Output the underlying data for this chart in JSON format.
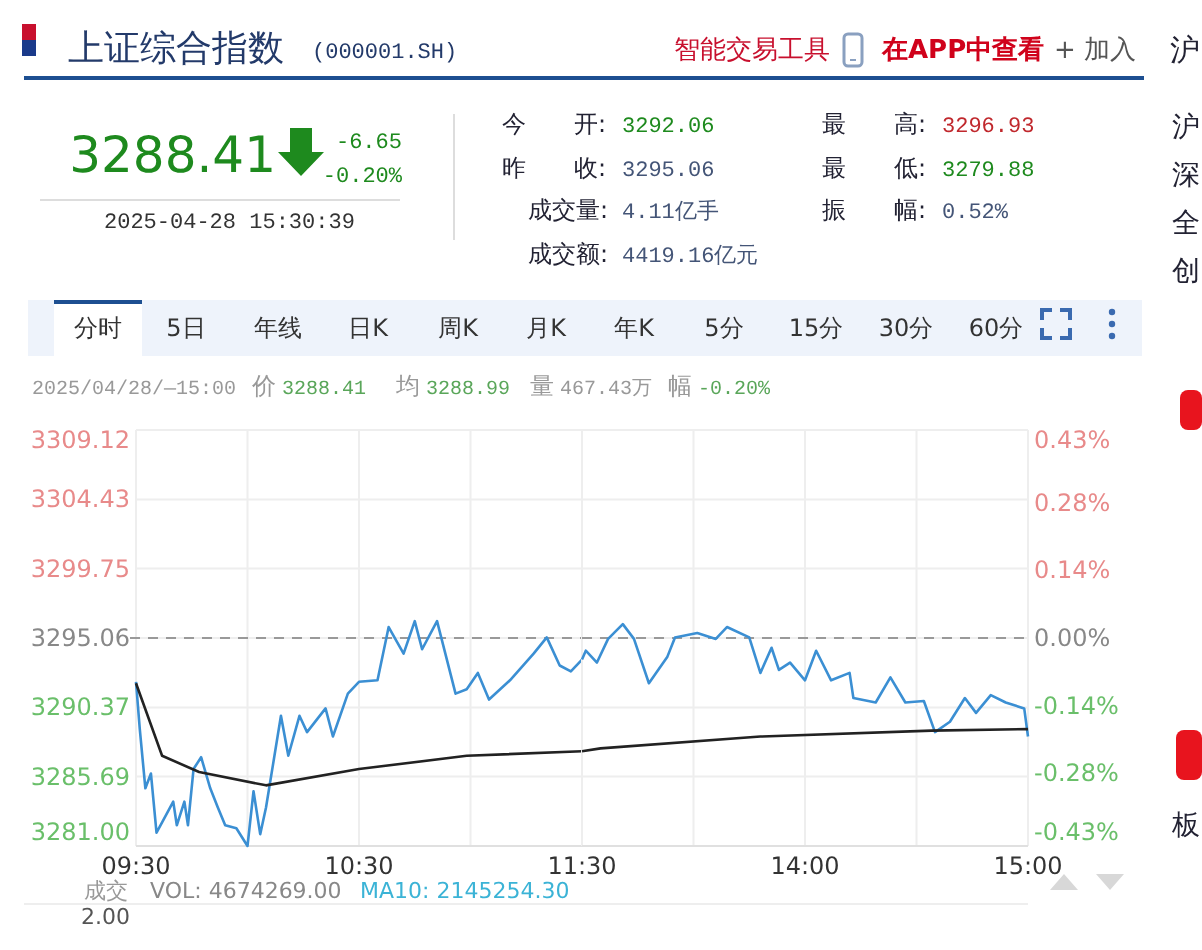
{
  "chart_data": [
    {
      "type": "line",
      "title": "上证综合指数",
      "subtitle": "(000001.SH)",
      "xlim": [
        9.5,
        11.5
      ],
      "xticks": [
        {
          "value": 9.5,
          "label": "09:30"
        },
        {
          "value": 10,
          "label": null
        },
        {
          "value": 10.5,
          "label": "10:30"
        },
        {
          "value": 11,
          "label": null
        },
        {
          "value": 11.5,
          "label": "11:30"
        }
      ],
      "ylim": [
        3281,
        3309.12
      ],
      "yticks": [
        {
          "value": 3281,
          "label": "3281.00"
        },
        3285.69,
        3290.37,
        3295.06,
        3299.75,
        3304.43,
        3309.12
      ],
      "grid": true,
      "marker": "none",
      "ref_lines": [
        {
          "axis": "y",
          "value": 3295.06,
          "color": "#999999",
          "line_style": "dashed"
        }
      ],
      "series": [
        {
          "color": "#3b8fd3",
          "x": [
            9.5,
            9.517,
            9.542,
            9.567,
            9.592,
            9.617,
            9.667,
            9.683,
            9.717,
            9.733,
            9.758,
            9.792,
            9.833,
            9.867,
            9.9,
            9.95,
            10,
            10.027,
            10.057,
            10.083,
            10.15,
            10.183,
            10.233,
            10.267,
            10.35,
            10.383,
            10.45,
            10.5,
            10.583,
            10.633,
            10.7,
            10.75,
            10.783,
            10.85,
            10.933,
            10.983,
            11.033,
            11.083,
            11.177,
            11.283,
            11.342,
            11.4,
            11.45,
            11.5
          ],
          "values": [
            3292.1,
            3288.9,
            3284.9,
            3285.9,
            3281.9,
            3282.6,
            3284.0,
            3282.4,
            3284.0,
            3282.4,
            3286.2,
            3287.0,
            3284.9,
            3283.6,
            3282.4,
            3282.2,
            3281.0,
            3284.7,
            3281.8,
            3283.6,
            3289.8,
            3287.1,
            3289.8,
            3288.7,
            3290.3,
            3288.4,
            3291.3,
            3292.1,
            3292.2,
            3295.8,
            3294.0,
            3296.2,
            3294.3,
            3296.2,
            3291.3,
            3291.6,
            3292.7,
            3290.9,
            3292.2,
            3294.0,
            3295.1,
            3293.2,
            3292.8,
            3293.6
          ]
        },
        {
          "color": "#222222",
          "x": [
            9.5,
            9.617,
            9.783,
            10.083,
            10.5,
            10.983,
            11.5
          ],
          "values": [
            3292.0,
            3287.1,
            3286.0,
            3285.1,
            3286.2,
            3287.1,
            3287.4
          ]
        }
      ],
      "annotations": [
        "智能交易工具",
        "在APP中查看",
        "+ 加入",
        "3288.41",
        "-6.65",
        "-0.20%",
        "2025-04-28 15:30:39",
        "今　　开:",
        "3292.06",
        "昨　　收:",
        "3295.06",
        "成交量:",
        "4.11亿手",
        "成交额:",
        "4419.16亿元",
        "最　　高:",
        "3296.93",
        "最　　低:",
        "3279.88",
        "振　　幅:",
        "0.52%",
        "分时",
        "5日",
        "年线",
        "日K",
        "周K",
        "月K",
        "年K",
        "5分",
        "15分",
        "30分",
        "60分",
        "2025/04/28/—15:00",
        "价",
        "3288.41",
        "均",
        "3288.99",
        "量",
        "467.43万",
        "幅",
        "-0.20%",
        "成交",
        "VOL: 4674269.00",
        "MA10: 2145254.30",
        "2.00",
        "沪",
        "沪",
        "深",
        "全",
        "创",
        "板"
      ]
    },
    {
      "type": "line",
      "xlim": [
        13,
        15
      ],
      "xticks": [
        {
          "value": 13,
          "label": null
        },
        {
          "value": 13.5,
          "label": null
        },
        {
          "value": 14,
          "label": "14:00"
        },
        {
          "value": 14.5,
          "label": null
        },
        {
          "value": 15,
          "label": "15:00"
        }
      ],
      "ylim": [
        3281,
        3309.12
      ],
      "yticks": [
        3281,
        3285.69,
        3290.37,
        3295.06,
        3299.75,
        3304.43,
        3309.12
      ],
      "tick_labels": "x",
      "y2lim": [
        -0.43,
        0.43
      ],
      "y2ticks": [
        {
          "value": -0.43,
          "label": "-0.43%"
        },
        {
          "value": -0.28,
          "label": "-0.28%"
        },
        {
          "value": -0.14,
          "label": "-0.14%"
        },
        {
          "value": 0,
          "label": "0.00%"
        },
        {
          "value": 0.14,
          "label": "0.14%"
        },
        {
          "value": 0.28,
          "label": "0.28%"
        },
        {
          "value": 0.43,
          "label": "0.43%"
        }
      ],
      "grid": true,
      "marker": "none",
      "ref_lines": [
        {
          "axis": "y",
          "value": 3295.06,
          "color": "#999999",
          "line_style": "dashed"
        }
      ],
      "series": [
        {
          "color": "#3b8fd3",
          "x": [
            13,
            13.017,
            13.067,
            13.117,
            13.183,
            13.233,
            13.3,
            13.383,
            13.417,
            13.517,
            13.6,
            13.65,
            13.75,
            13.8,
            13.85,
            13.883,
            13.933,
            14,
            14.05,
            14.117,
            14.2,
            14.217,
            14.317,
            14.383,
            14.45,
            14.533,
            14.583,
            14.65,
            14.717,
            14.767,
            14.833,
            14.9,
            14.983,
            15
          ],
          "values": [
            3293.6,
            3294.2,
            3293.4,
            3295.0,
            3296.0,
            3295.0,
            3292.0,
            3293.8,
            3295.1,
            3295.4,
            3295.0,
            3295.8,
            3295.1,
            3292.7,
            3294.4,
            3292.9,
            3293.4,
            3292.2,
            3294.2,
            3292.2,
            3292.7,
            3291.0,
            3290.7,
            3292.4,
            3290.7,
            3290.8,
            3288.7,
            3289.4,
            3291.0,
            3290.0,
            3291.2,
            3290.7,
            3290.3,
            3288.4
          ]
        },
        {
          "color": "#222222",
          "x": [
            13,
            13.083,
            13.8,
            14.567,
            15
          ],
          "values": [
            3287.4,
            3287.6,
            3288.4,
            3288.8,
            3288.9
          ]
        }
      ]
    }
  ]
}
